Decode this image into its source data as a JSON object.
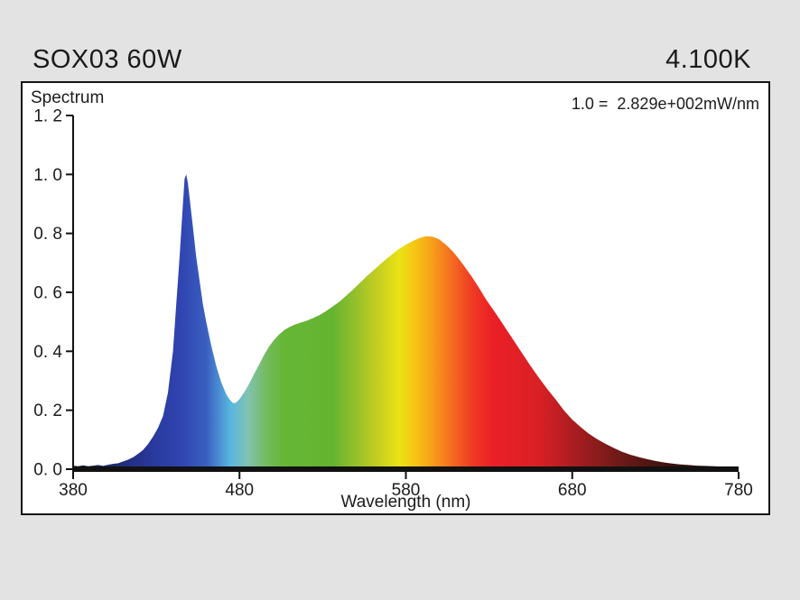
{
  "header": {
    "model": "SOX03 60W",
    "color_temperature": "4.100K"
  },
  "panel": {
    "label": "Spectrum",
    "scale_note": "1.0 =  2.829e+002mW/nm"
  },
  "colors": {
    "background": "#e2e3e2",
    "panel_background": "#ffffff",
    "border": "#161616",
    "axis": "#111111",
    "text": "#1b1b1b"
  },
  "chart_data": {
    "type": "area",
    "title": "Spectrum",
    "xlabel": "Wavelength (nm)",
    "ylabel": "",
    "xlim": [
      380,
      780
    ],
    "ylim": [
      0,
      1.2
    ],
    "grid": false,
    "normalization_note": "1.0 =  2.829e+002mW/nm",
    "x_ticks": [
      {
        "value": 380,
        "label": "380"
      },
      {
        "value": 480,
        "label": "480"
      },
      {
        "value": 580,
        "label": "580"
      },
      {
        "value": 680,
        "label": "680"
      },
      {
        "value": 780,
        "label": "780"
      }
    ],
    "y_ticks": [
      {
        "value": 0.0,
        "label": "0. 0"
      },
      {
        "value": 0.2,
        "label": "0. 2"
      },
      {
        "value": 0.4,
        "label": "0. 4"
      },
      {
        "value": 0.6,
        "label": "0. 6"
      },
      {
        "value": 0.8,
        "label": "0. 8"
      },
      {
        "value": 1.0,
        "label": "1. 0"
      },
      {
        "value": 1.2,
        "label": "1. 2"
      }
    ],
    "points": [
      [
        380,
        0.012
      ],
      [
        383,
        0.01
      ],
      [
        386,
        0.013
      ],
      [
        389,
        0.01
      ],
      [
        392,
        0.012
      ],
      [
        395,
        0.014
      ],
      [
        398,
        0.011
      ],
      [
        401,
        0.015
      ],
      [
        404,
        0.018
      ],
      [
        407,
        0.02
      ],
      [
        410,
        0.026
      ],
      [
        413,
        0.032
      ],
      [
        416,
        0.04
      ],
      [
        419,
        0.052
      ],
      [
        422,
        0.065
      ],
      [
        425,
        0.085
      ],
      [
        428,
        0.11
      ],
      [
        431,
        0.14
      ],
      [
        434,
        0.18
      ],
      [
        437,
        0.26
      ],
      [
        440,
        0.4
      ],
      [
        442,
        0.56
      ],
      [
        444,
        0.72
      ],
      [
        446,
        0.9
      ],
      [
        447,
        0.985
      ],
      [
        448,
        1.0
      ],
      [
        449,
        0.97
      ],
      [
        450,
        0.92
      ],
      [
        452,
        0.82
      ],
      [
        454,
        0.72
      ],
      [
        456,
        0.64
      ],
      [
        458,
        0.56
      ],
      [
        460,
        0.5
      ],
      [
        463,
        0.42
      ],
      [
        466,
        0.35
      ],
      [
        469,
        0.295
      ],
      [
        472,
        0.255
      ],
      [
        474,
        0.237
      ],
      [
        476,
        0.224
      ],
      [
        478,
        0.226
      ],
      [
        480,
        0.238
      ],
      [
        483,
        0.262
      ],
      [
        486,
        0.292
      ],
      [
        489,
        0.325
      ],
      [
        492,
        0.358
      ],
      [
        495,
        0.39
      ],
      [
        498,
        0.418
      ],
      [
        501,
        0.44
      ],
      [
        504,
        0.458
      ],
      [
        507,
        0.472
      ],
      [
        510,
        0.482
      ],
      [
        513,
        0.49
      ],
      [
        516,
        0.496
      ],
      [
        520,
        0.503
      ],
      [
        524,
        0.512
      ],
      [
        528,
        0.523
      ],
      [
        532,
        0.536
      ],
      [
        536,
        0.552
      ],
      [
        540,
        0.568
      ],
      [
        544,
        0.588
      ],
      [
        548,
        0.608
      ],
      [
        552,
        0.63
      ],
      [
        556,
        0.652
      ],
      [
        560,
        0.672
      ],
      [
        564,
        0.692
      ],
      [
        568,
        0.712
      ],
      [
        572,
        0.73
      ],
      [
        576,
        0.748
      ],
      [
        580,
        0.762
      ],
      [
        584,
        0.774
      ],
      [
        588,
        0.784
      ],
      [
        592,
        0.79
      ],
      [
        596,
        0.789
      ],
      [
        600,
        0.78
      ],
      [
        604,
        0.762
      ],
      [
        608,
        0.74
      ],
      [
        612,
        0.712
      ],
      [
        616,
        0.682
      ],
      [
        620,
        0.65
      ],
      [
        624,
        0.615
      ],
      [
        628,
        0.578
      ],
      [
        632,
        0.545
      ],
      [
        636,
        0.512
      ],
      [
        640,
        0.478
      ],
      [
        645,
        0.435
      ],
      [
        650,
        0.392
      ],
      [
        655,
        0.35
      ],
      [
        660,
        0.31
      ],
      [
        665,
        0.272
      ],
      [
        670,
        0.237
      ],
      [
        675,
        0.2
      ],
      [
        680,
        0.168
      ],
      [
        685,
        0.143
      ],
      [
        690,
        0.12
      ],
      [
        695,
        0.102
      ],
      [
        700,
        0.086
      ],
      [
        705,
        0.072
      ],
      [
        710,
        0.059
      ],
      [
        715,
        0.049
      ],
      [
        720,
        0.041
      ],
      [
        725,
        0.034
      ],
      [
        730,
        0.028
      ],
      [
        735,
        0.023
      ],
      [
        740,
        0.019
      ],
      [
        745,
        0.016
      ],
      [
        750,
        0.014
      ],
      [
        755,
        0.012
      ],
      [
        760,
        0.011
      ],
      [
        765,
        0.01
      ],
      [
        770,
        0.009
      ],
      [
        775,
        0.008
      ],
      [
        780,
        0.008
      ]
    ],
    "spectrum_gradient": [
      [
        0.0,
        "#16193f"
      ],
      [
        0.03,
        "#1b2158"
      ],
      [
        0.075,
        "#212c7c"
      ],
      [
        0.125,
        "#2a3a9f"
      ],
      [
        0.165,
        "#3146b2"
      ],
      [
        0.2,
        "#3a5fc0"
      ],
      [
        0.236,
        "#58b6e0"
      ],
      [
        0.263,
        "#82c2b0"
      ],
      [
        0.29,
        "#74bb60"
      ],
      [
        0.315,
        "#67b637"
      ],
      [
        0.39,
        "#64b42f"
      ],
      [
        0.425,
        "#96c02b"
      ],
      [
        0.46,
        "#c8cf20"
      ],
      [
        0.49,
        "#eae215"
      ],
      [
        0.515,
        "#f6c413"
      ],
      [
        0.54,
        "#f79d1b"
      ],
      [
        0.57,
        "#f46a20"
      ],
      [
        0.6,
        "#ef3a24"
      ],
      [
        0.63,
        "#ea2026"
      ],
      [
        0.7,
        "#d92025"
      ],
      [
        0.755,
        "#a71d20"
      ],
      [
        0.82,
        "#6e1a18"
      ],
      [
        0.9,
        "#3a120e"
      ],
      [
        1.0,
        "#1d0d09"
      ]
    ]
  }
}
